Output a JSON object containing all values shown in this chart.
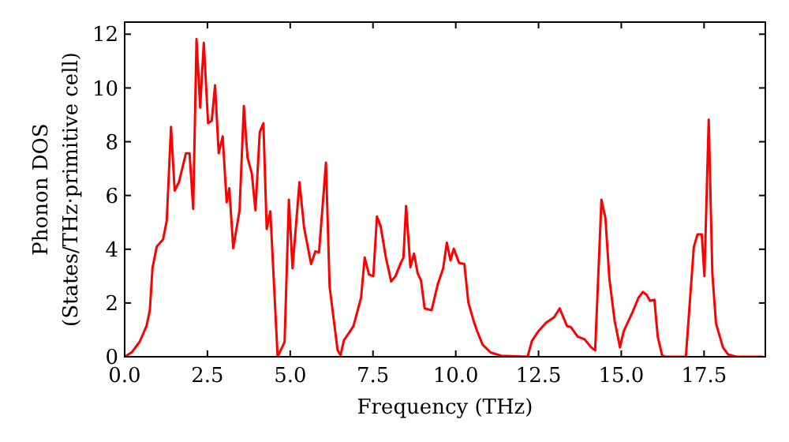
{
  "chart_data": {
    "type": "line",
    "xlabel": "Frequency (THz)",
    "ylabel": "Phonon DOS\n(States/THz·primitive cell)",
    "xlim": [
      0,
      19.35
    ],
    "ylim": [
      0,
      12.45
    ],
    "xticks": [
      {
        "value": 0,
        "label": "0.0"
      },
      {
        "value": 2.5,
        "label": "2.5"
      },
      {
        "value": 5,
        "label": "5.0"
      },
      {
        "value": 7.5,
        "label": "7.5"
      },
      {
        "value": 10,
        "label": "10.0"
      },
      {
        "value": 12.5,
        "label": "12.5"
      },
      {
        "value": 15,
        "label": "15.0"
      },
      {
        "value": 17.5,
        "label": "17.5"
      }
    ],
    "yticks": [
      0,
      2,
      4,
      6,
      8,
      10,
      12
    ],
    "grid": false,
    "marker": "none",
    "line_style": "solid",
    "series": [
      {
        "color": "#ff0000",
        "x": [
          0,
          0.21,
          0.45,
          0.66,
          0.76,
          0.84,
          0.97,
          1.16,
          1.27,
          1.4,
          1.51,
          1.64,
          1.85,
          1.96,
          2.07,
          2.17,
          2.28,
          2.39,
          2.52,
          2.63,
          2.73,
          2.84,
          2.96,
          3.08,
          3.16,
          3.28,
          3.47,
          3.6,
          3.71,
          3.84,
          3.95,
          4.08,
          4.19,
          4.29,
          4.4,
          4.62,
          4.83,
          4.96,
          5.07,
          5.28,
          5.42,
          5.63,
          5.76,
          5.87,
          6.08,
          6.19,
          6.3,
          6.43,
          6.52,
          6.62,
          6.75,
          6.91,
          7.14,
          7.25,
          7.38,
          7.51,
          7.62,
          7.73,
          7.89,
          8.05,
          8.18,
          8.34,
          8.42,
          8.5,
          8.63,
          8.74,
          8.85,
          8.95,
          9.06,
          9.27,
          9.46,
          9.62,
          9.73,
          9.84,
          9.94,
          10.1,
          10.26,
          10.38,
          10.54,
          10.65,
          10.81,
          11.05,
          11.37,
          12.17,
          12.3,
          12.49,
          12.73,
          12.97,
          13.14,
          13.36,
          13.48,
          13.68,
          13.89,
          14.09,
          14.21,
          14.4,
          14.52,
          14.64,
          14.8,
          14.96,
          15.07,
          15.33,
          15.52,
          15.65,
          15.76,
          15.87,
          16.0,
          16.1,
          16.23,
          16.31,
          16.95,
          17.19,
          17.3,
          17.43,
          17.51,
          17.64,
          17.75,
          17.86,
          18.07,
          18.23,
          18.47,
          19.27
        ],
        "values": [
          0,
          0.16,
          0.55,
          1.14,
          1.73,
          3.3,
          4.1,
          4.37,
          5.06,
          8.55,
          6.18,
          6.5,
          7.57,
          7.57,
          5.5,
          11.82,
          9.27,
          11.68,
          8.69,
          8.78,
          10.1,
          7.57,
          8.2,
          5.75,
          6.27,
          4.04,
          5.45,
          9.33,
          7.41,
          6.82,
          5.45,
          8.35,
          8.69,
          4.75,
          5.41,
          0,
          0.55,
          5.84,
          3.29,
          6.5,
          4.8,
          3.45,
          3.92,
          3.88,
          7.22,
          2.61,
          1.53,
          0.25,
          0.06,
          0.61,
          0.84,
          1.14,
          2.2,
          3.69,
          3.06,
          3.0,
          5.22,
          4.86,
          3.69,
          2.8,
          3.0,
          3.49,
          3.69,
          5.61,
          3.33,
          3.84,
          3.1,
          2.84,
          1.8,
          1.73,
          2.71,
          3.29,
          4.24,
          3.59,
          4.02,
          3.49,
          3.45,
          2.02,
          1.33,
          0.94,
          0.45,
          0.16,
          0.04,
          0,
          0.59,
          0.94,
          1.27,
          1.47,
          1.8,
          1.14,
          1.1,
          0.75,
          0.65,
          0.35,
          0.24,
          5.84,
          5.16,
          2.9,
          1.33,
          0.35,
          0.94,
          1.63,
          2.2,
          2.41,
          2.31,
          2.08,
          2.12,
          0.75,
          0.06,
          0,
          0,
          4.08,
          4.55,
          4.55,
          3.0,
          8.82,
          3.1,
          1.24,
          0.35,
          0.08,
          0,
          0
        ]
      }
    ]
  }
}
